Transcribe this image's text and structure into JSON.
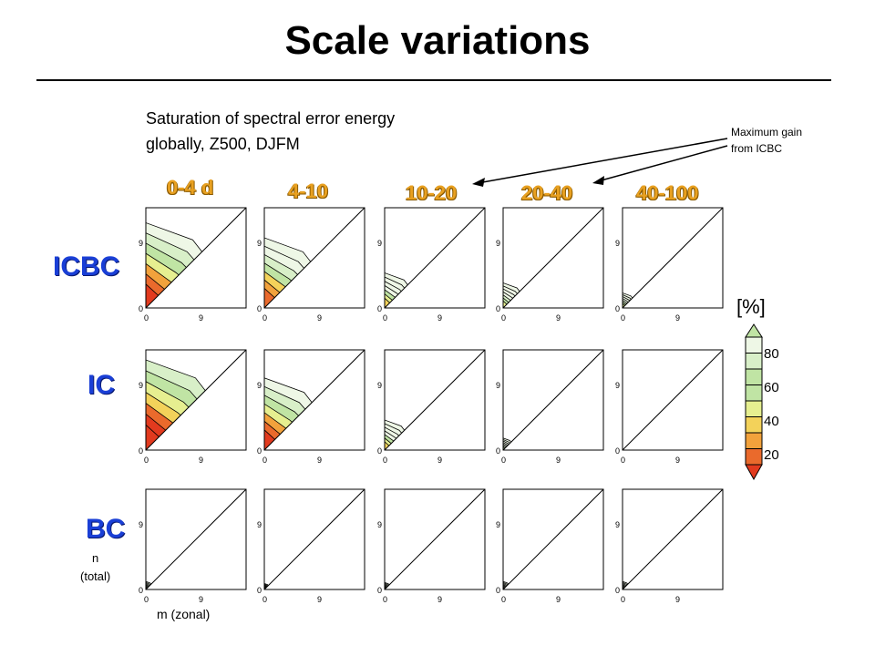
{
  "title": "Scale variations",
  "subtitle_line1": "Saturation of spectral error energy",
  "subtitle_line2": "globally,  Z500, DJFM",
  "annotation_line1": "Maximum gain",
  "annotation_line2": "from ICBC",
  "columns": [
    "0-4 d",
    "4-10",
    "10-20",
    "20-40",
    "40-100"
  ],
  "rows": [
    "ICBC",
    "IC",
    "BC"
  ],
  "axis_n_line1": "n",
  "axis_n_line2": "(total)",
  "axis_m": "m (zonal)",
  "colors": {
    "accent_col": "#e8a020",
    "accent_row": "#1a3fd6"
  },
  "chart_data": {
    "type": "heatmap",
    "x_label": "m (zonal)",
    "y_label": "n (total)",
    "tick_labels": [
      "0",
      "9"
    ],
    "colorbar": {
      "unit": "[%]",
      "ticks": [
        "80",
        "60",
        "40",
        "20"
      ]
    },
    "panel_levels": {
      "ICBC": [
        0.85,
        0.7,
        0.35,
        0.25,
        0.15
      ],
      "IC": [
        0.9,
        0.72,
        0.3,
        0.12,
        0.0
      ],
      "BC": [
        0.08,
        0.06,
        0.07,
        0.08,
        0.08
      ]
    }
  }
}
